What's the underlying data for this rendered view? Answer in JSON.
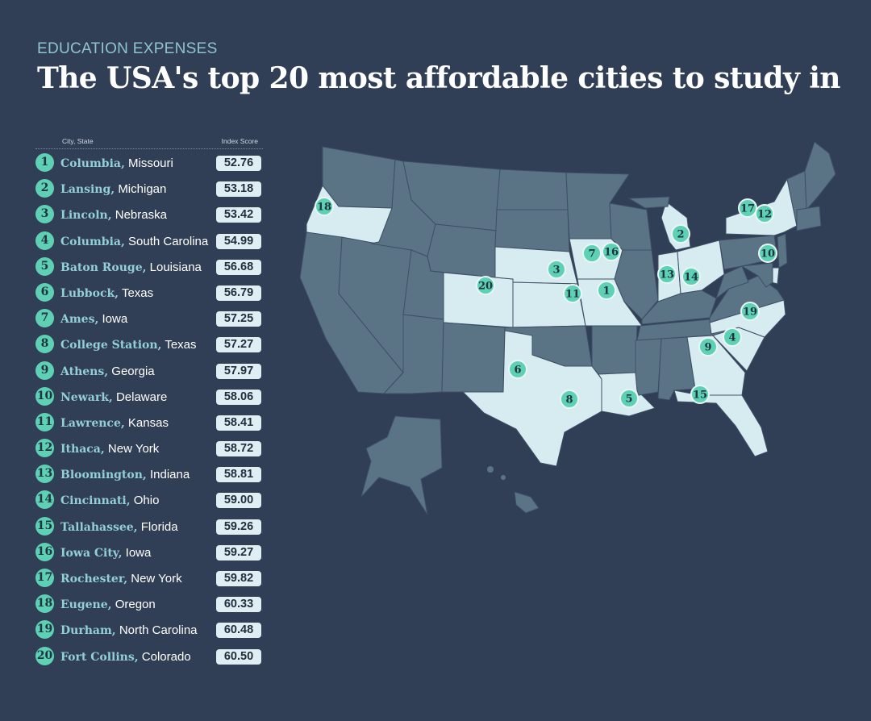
{
  "header": {
    "eyebrow": "EDUCATION EXPENSES",
    "title": "The USA's top 20 most affordable cities to study in"
  },
  "table": {
    "col_city": "City, State",
    "col_score": "Index Score",
    "rows": [
      {
        "rank": "1",
        "city": "Columbia,",
        "state": "Missouri",
        "score": "52.76"
      },
      {
        "rank": "2",
        "city": "Lansing,",
        "state": "Michigan",
        "score": "53.18"
      },
      {
        "rank": "3",
        "city": "Lincoln,",
        "state": "Nebraska",
        "score": "53.42"
      },
      {
        "rank": "4",
        "city": "Columbia,",
        "state": "South Carolina",
        "score": "54.99"
      },
      {
        "rank": "5",
        "city": "Baton Rouge,",
        "state": "Louisiana",
        "score": "56.68"
      },
      {
        "rank": "6",
        "city": "Lubbock,",
        "state": "Texas",
        "score": "56.79"
      },
      {
        "rank": "7",
        "city": "Ames,",
        "state": "Iowa",
        "score": "57.25"
      },
      {
        "rank": "8",
        "city": "College Station,",
        "state": "Texas",
        "score": "57.27"
      },
      {
        "rank": "9",
        "city": "Athens,",
        "state": "Georgia",
        "score": "57.97"
      },
      {
        "rank": "10",
        "city": "Newark,",
        "state": "Delaware",
        "score": "58.06"
      },
      {
        "rank": "11",
        "city": "Lawrence,",
        "state": "Kansas",
        "score": "58.41"
      },
      {
        "rank": "12",
        "city": "Ithaca,",
        "state": "New York",
        "score": "58.72"
      },
      {
        "rank": "13",
        "city": "Bloomington,",
        "state": "Indiana",
        "score": "58.81"
      },
      {
        "rank": "14",
        "city": "Cincinnati,",
        "state": "Ohio",
        "score": "59.00"
      },
      {
        "rank": "15",
        "city": "Tallahassee,",
        "state": "Florida",
        "score": "59.26"
      },
      {
        "rank": "16",
        "city": "Iowa City,",
        "state": "Iowa",
        "score": "59.27"
      },
      {
        "rank": "17",
        "city": "Rochester,",
        "state": "New York",
        "score": "59.82"
      },
      {
        "rank": "18",
        "city": "Eugene,",
        "state": "Oregon",
        "score": "60.33"
      },
      {
        "rank": "19",
        "city": "Durham,",
        "state": "North Carolina",
        "score": "60.48"
      },
      {
        "rank": "20",
        "city": "Fort Collins,",
        "state": "Colorado",
        "score": "60.50"
      }
    ]
  },
  "map": {
    "highlighted_states": [
      "Oregon",
      "Colorado",
      "Nebraska",
      "Kansas",
      "Iowa",
      "Missouri",
      "Texas",
      "Louisiana",
      "Michigan",
      "Indiana",
      "Ohio",
      "North Carolina",
      "South Carolina",
      "Georgia",
      "Florida",
      "New York",
      "Delaware"
    ],
    "colors": {
      "highlight": "#d7ecf0",
      "base": "#5a7486",
      "marker": "#5ed1b4",
      "background": "#313f56"
    },
    "markers": [
      "1",
      "2",
      "3",
      "4",
      "5",
      "6",
      "7",
      "8",
      "9",
      "10",
      "11",
      "12",
      "13",
      "14",
      "15",
      "16",
      "17",
      "18",
      "19",
      "20"
    ]
  }
}
